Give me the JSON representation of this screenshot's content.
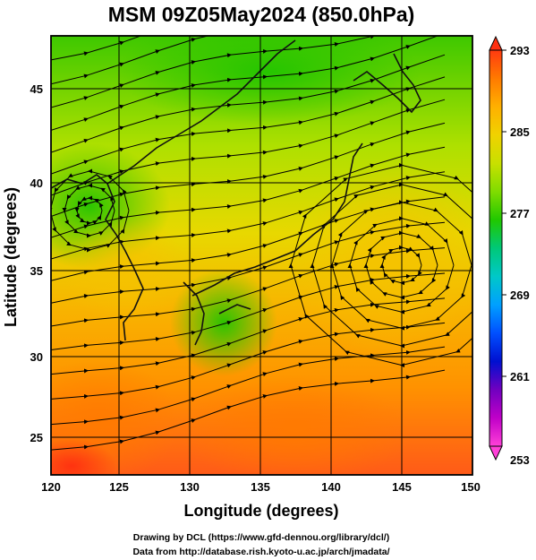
{
  "title": "MSM 09Z05May2024 (850.0hPa)",
  "x_axis": {
    "label": "Longitude (degrees)",
    "ticks": [
      "120",
      "125",
      "130",
      "135",
      "140",
      "145",
      "150"
    ]
  },
  "y_axis": {
    "label": "Latitude  (degrees)",
    "ticks": [
      "25",
      "30",
      "35",
      "40",
      "45"
    ]
  },
  "colorbar": {
    "ticks": [
      "293",
      "285",
      "277",
      "269",
      "261",
      "253"
    ],
    "colors": [
      "#ff3a10",
      "#ff7a00",
      "#ffb000",
      "#f0d200",
      "#c8e000",
      "#80dc00",
      "#20c800",
      "#00c878",
      "#00c8c8",
      "#00a0ff",
      "#0050ff",
      "#0010d0",
      "#7000c0",
      "#c000c8",
      "#ff40d8"
    ]
  },
  "credits": {
    "line1": "Drawing by DCL (https://www.gfd-dennou.org/library/dcl/)",
    "line2": "Data from http://database.rish.kyoto-u.ac.jp/arch/jmadata/"
  },
  "chart_data": {
    "type": "heatmap",
    "variable": "temperature at 850 hPa with wind streamlines",
    "unit": "K",
    "xlim": [
      120,
      150
    ],
    "ylim": [
      22.5,
      47.5
    ],
    "color_range": [
      253,
      293
    ],
    "approx_field": [
      {
        "lon": 122,
        "lat": 45,
        "value": 277
      },
      {
        "lon": 135,
        "lat": 46,
        "value": 277
      },
      {
        "lon": 147,
        "lat": 45,
        "value": 280
      },
      {
        "lon": 124,
        "lat": 40,
        "value": 275
      },
      {
        "lon": 133,
        "lat": 40,
        "value": 281
      },
      {
        "lon": 145,
        "lat": 40,
        "value": 283
      },
      {
        "lon": 125,
        "lat": 35,
        "value": 283
      },
      {
        "lon": 132,
        "lat": 33,
        "value": 280
      },
      {
        "lon": 145,
        "lat": 35,
        "value": 285
      },
      {
        "lon": 122,
        "lat": 27,
        "value": 288
      },
      {
        "lon": 135,
        "lat": 27,
        "value": 287
      },
      {
        "lon": 147,
        "lat": 27,
        "value": 286
      }
    ],
    "features": [
      "anticyclone centered near 145E 35N",
      "cyclonic circulation near 123E 39N"
    ]
  }
}
